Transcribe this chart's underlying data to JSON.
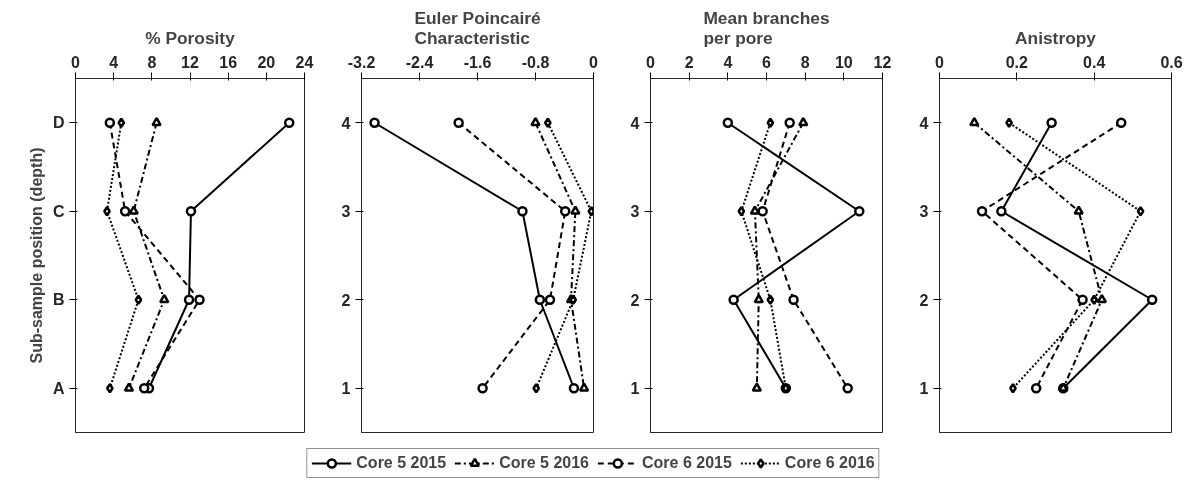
{
  "chart_data": [
    {
      "type": "line",
      "orientation": "horizontal",
      "title": "% Porosity",
      "ylabel": "Sub-sample position (depth)",
      "categories": [
        "D",
        "C",
        "B",
        "A"
      ],
      "xlim": [
        0,
        24
      ],
      "xticks": [
        0,
        4,
        8,
        12,
        16,
        20,
        24
      ],
      "grid": false,
      "legend": "bottom",
      "series": [
        {
          "name": "Core 5 2015",
          "color": "#000000",
          "marker": "circle",
          "line_style": "solid",
          "values": [
            22.4,
            12.1,
            11.9,
            7.7
          ]
        },
        {
          "name": "Core 5 2016",
          "color": "#000000",
          "marker": "triangle",
          "line_style": "dashdot",
          "values": [
            8.5,
            6.1,
            9.3,
            5.6
          ]
        },
        {
          "name": "Core 6 2015",
          "color": "#000000",
          "marker": "circle",
          "line_style": "dashed",
          "values": [
            3.6,
            5.2,
            13.0,
            7.2
          ]
        },
        {
          "name": "Core 6 2016",
          "color": "#000000",
          "marker": "diamond",
          "line_style": "dotted",
          "values": [
            4.8,
            3.3,
            6.6,
            3.6
          ]
        }
      ]
    },
    {
      "type": "line",
      "orientation": "horizontal",
      "title": "Euler Poincairé\nCharacteristic",
      "categories": [
        "4",
        "3",
        "2",
        "1"
      ],
      "xlim": [
        -3.2,
        0
      ],
      "xticks": [
        -3.2,
        -2.4,
        -1.6,
        -0.8,
        0
      ],
      "grid": false,
      "series": [
        {
          "color": "#000000",
          "marker": "circle",
          "line_style": "solid",
          "values": [
            -3.02,
            -0.98,
            -0.74,
            -0.27
          ]
        },
        {
          "color": "#000000",
          "marker": "triangle",
          "line_style": "dashdot",
          "values": [
            -0.8,
            -0.25,
            -0.31,
            -0.13
          ]
        },
        {
          "color": "#000000",
          "marker": "circle",
          "line_style": "dashed",
          "values": [
            -1.86,
            -0.39,
            -0.6,
            -1.53
          ]
        },
        {
          "color": "#000000",
          "marker": "diamond",
          "line_style": "dotted",
          "values": [
            -0.63,
            -0.03,
            -0.28,
            -0.79
          ]
        }
      ]
    },
    {
      "type": "line",
      "orientation": "horizontal",
      "title": "Mean branches\nper pore",
      "categories": [
        "4",
        "3",
        "2",
        "1"
      ],
      "xlim": [
        0,
        12
      ],
      "xticks": [
        0,
        2,
        4,
        6,
        8,
        10,
        12
      ],
      "grid": false,
      "series": [
        {
          "color": "#000000",
          "marker": "circle",
          "line_style": "solid",
          "values": [
            4.0,
            10.8,
            4.3,
            7.0
          ]
        },
        {
          "color": "#000000",
          "marker": "triangle",
          "line_style": "dashdot",
          "values": [
            7.9,
            5.4,
            5.6,
            5.5
          ]
        },
        {
          "color": "#000000",
          "marker": "circle",
          "line_style": "dashed",
          "values": [
            7.2,
            5.8,
            7.4,
            10.2
          ]
        },
        {
          "color": "#000000",
          "marker": "diamond",
          "line_style": "dotted",
          "values": [
            6.2,
            4.7,
            6.2,
            7.0
          ]
        }
      ]
    },
    {
      "type": "line",
      "orientation": "horizontal",
      "title": "Anistropy",
      "categories": [
        "4",
        "3",
        "2",
        "1"
      ],
      "xlim": [
        0,
        0.6
      ],
      "xticks": [
        0,
        0.2,
        0.4,
        0.6
      ],
      "grid": false,
      "series": [
        {
          "color": "#000000",
          "marker": "circle",
          "line_style": "solid",
          "values": [
            0.29,
            0.16,
            0.55,
            0.32
          ]
        },
        {
          "color": "#000000",
          "marker": "triangle",
          "line_style": "dashdot",
          "values": [
            0.09,
            0.36,
            0.42,
            0.32
          ]
        },
        {
          "color": "#000000",
          "marker": "circle",
          "line_style": "dashed",
          "values": [
            0.47,
            0.11,
            0.37,
            0.25
          ]
        },
        {
          "color": "#000000",
          "marker": "diamond",
          "line_style": "dotted",
          "values": [
            0.18,
            0.52,
            0.4,
            0.19
          ]
        }
      ]
    }
  ]
}
